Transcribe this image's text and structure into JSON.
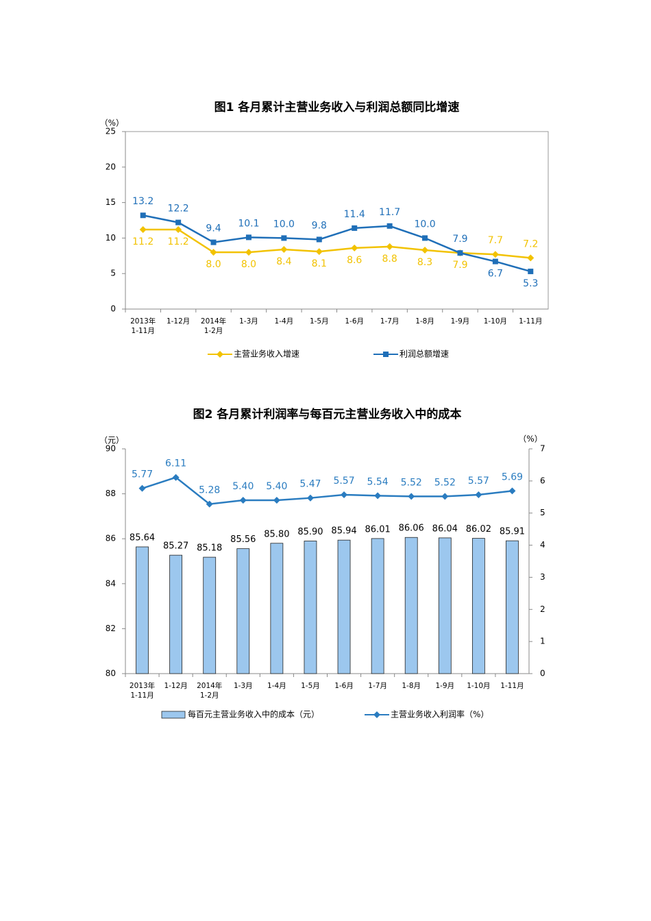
{
  "chart_data": [
    {
      "type": "line",
      "title": "图1 各月累计主营业务收入与利润总额同比增速",
      "y_label": "（%）",
      "categories": [
        "2013年\n1-11月",
        "1-12月",
        "2014年\n1-2月",
        "1-3月",
        "1-4月",
        "1-5月",
        "1-6月",
        "1-7月",
        "1-8月",
        "1-9月",
        "1-10月",
        "1-11月"
      ],
      "ylim": [
        0,
        25
      ],
      "yticks": [
        0,
        5,
        10,
        15,
        20,
        25
      ],
      "legend": "bottom",
      "series": [
        {
          "name": "主营业务收入增速",
          "color": "#f2c200",
          "marker": "diamond",
          "values": [
            11.2,
            11.2,
            8.0,
            8.0,
            8.4,
            8.1,
            8.6,
            8.8,
            8.3,
            7.9,
            7.7,
            7.2
          ],
          "value_labels": [
            "11.2",
            "11.2",
            "8.0",
            "8.0",
            "8.4",
            "8.1",
            "8.6",
            "8.8",
            "8.3",
            "7.9",
            "7.7",
            "7.2"
          ]
        },
        {
          "name": "利润总额增速",
          "color": "#1f6fb8",
          "marker": "square",
          "values": [
            13.2,
            12.2,
            9.4,
            10.1,
            10.0,
            9.8,
            11.4,
            11.7,
            10.0,
            7.9,
            6.7,
            5.3
          ],
          "value_labels": [
            "13.2",
            "12.2",
            "9.4",
            "10.1",
            "10.0",
            "9.8",
            "11.4",
            "11.7",
            "10.0",
            "7.9",
            "6.7",
            "5.3"
          ]
        }
      ]
    },
    {
      "type": "bar",
      "title": "图2 各月累计利润率与每百元主营业务收入中的成本",
      "y_label": "（元）",
      "y2_label": "（%）",
      "categories": [
        "2013年\n1-11月",
        "1-12月",
        "2014年\n1-2月",
        "1-3月",
        "1-4月",
        "1-5月",
        "1-6月",
        "1-7月",
        "1-8月",
        "1-9月",
        "1-10月",
        "1-11月"
      ],
      "ylim": [
        80,
        90
      ],
      "yticks": [
        80,
        82,
        84,
        86,
        88,
        90
      ],
      "y2lim": [
        0,
        7
      ],
      "y2ticks": [
        0,
        1,
        2,
        3,
        4,
        5,
        6,
        7
      ],
      "legend": "bottom",
      "series": [
        {
          "name": "每百元主营业务收入中的成本（元）",
          "type": "bar",
          "color": "#9cc7ee",
          "values": [
            85.64,
            85.27,
            85.18,
            85.56,
            85.8,
            85.9,
            85.94,
            86.01,
            86.06,
            86.04,
            86.02,
            85.91
          ],
          "value_labels": [
            "85.64",
            "85.27",
            "85.18",
            "85.56",
            "85.80",
            "85.90",
            "85.94",
            "86.01",
            "86.06",
            "86.04",
            "86.02",
            "85.91"
          ]
        },
        {
          "name": "主营业务收入利润率（%）",
          "type": "line",
          "axis": "y2",
          "color": "#2a7cc0",
          "marker": "diamond",
          "values": [
            5.77,
            6.11,
            5.28,
            5.4,
            5.4,
            5.47,
            5.57,
            5.54,
            5.52,
            5.52,
            5.57,
            5.69
          ],
          "value_labels": [
            "5.77",
            "6.11",
            "5.28",
            "5.40",
            "5.40",
            "5.47",
            "5.57",
            "5.54",
            "5.52",
            "5.52",
            "5.57",
            "5.69"
          ]
        }
      ]
    }
  ]
}
